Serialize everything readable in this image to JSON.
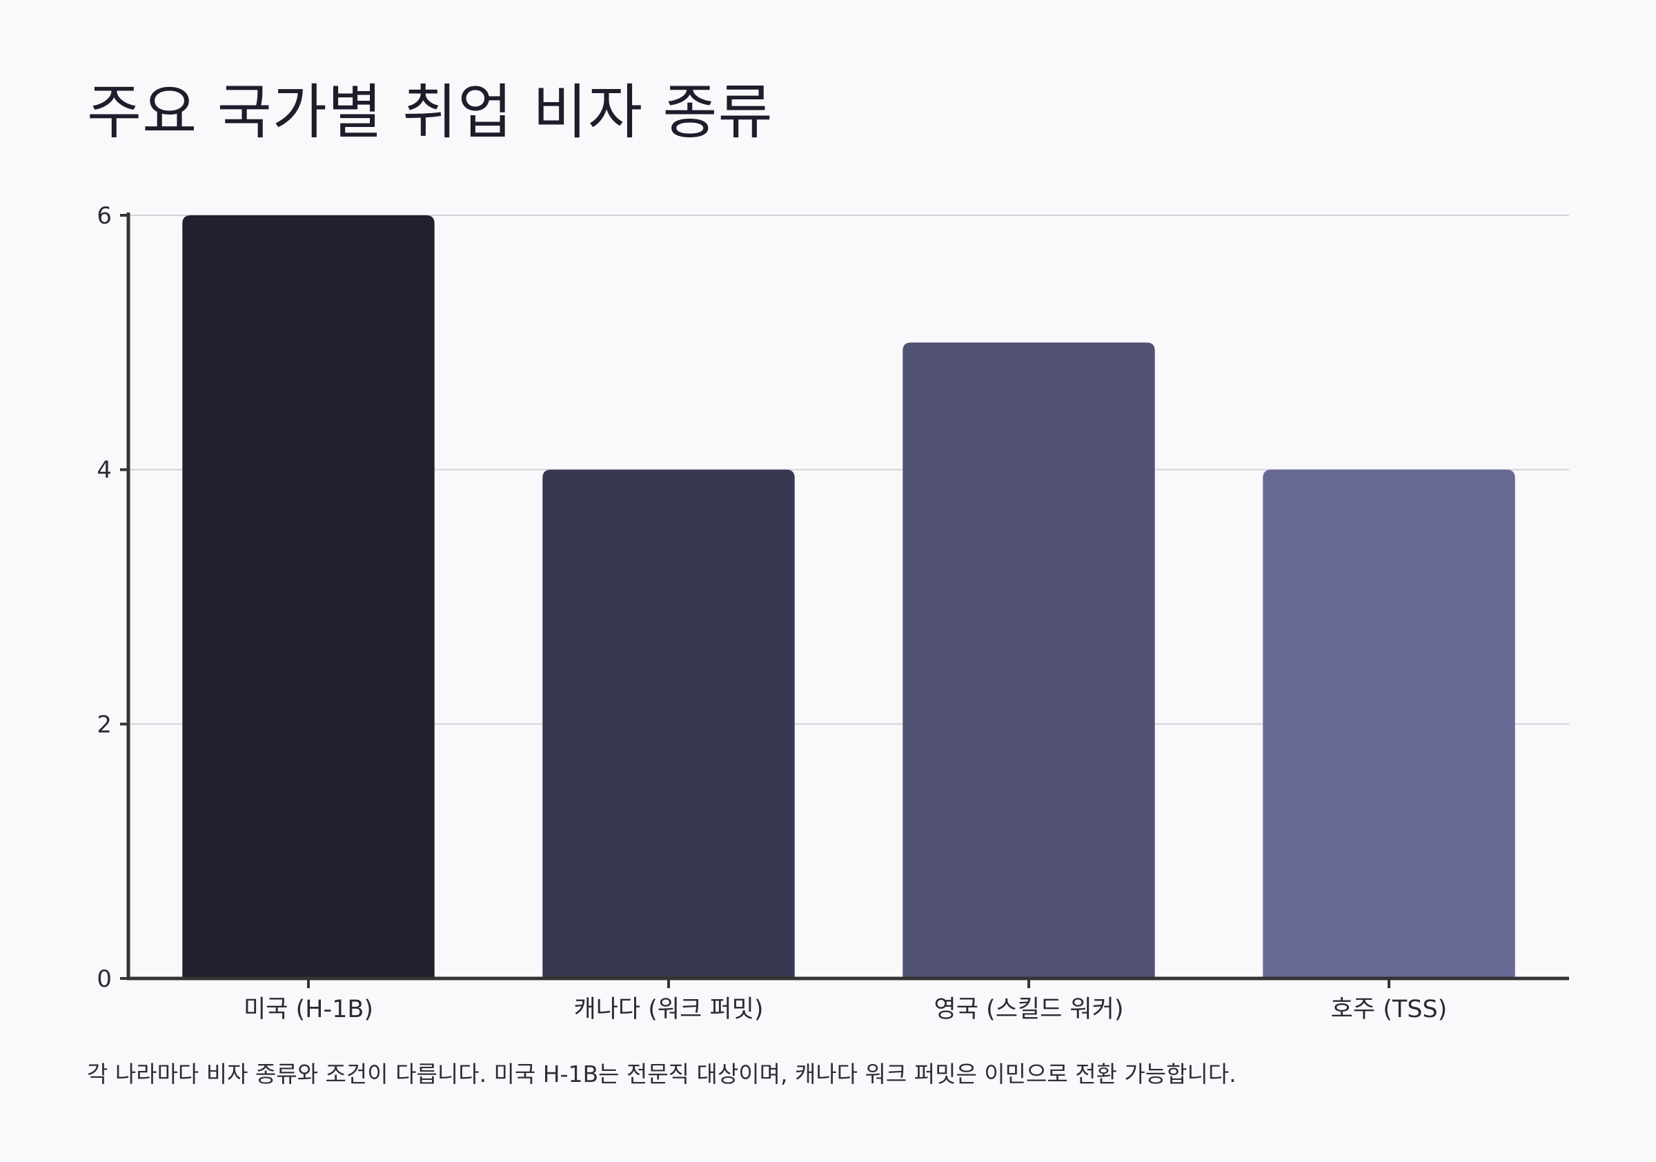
{
  "chart_data": {
    "type": "bar",
    "title": "주요 국가별 취업 비자 종류",
    "categories": [
      "미국 (H-1B)",
      "캐나다 (워크 퍼밋)",
      "영국 (스킬드 워커)",
      "호주 (TSS)"
    ],
    "values": [
      6,
      4,
      5,
      4
    ],
    "bar_colors": [
      "#20202e",
      "#383850",
      "#515173",
      "#696996"
    ],
    "xlabel": "",
    "ylabel": "",
    "ylim": [
      0,
      6
    ],
    "yticks": [
      0,
      2,
      4,
      6
    ],
    "grid": true,
    "legend": "none"
  },
  "caption": "각 나라마다 비자 종류와 조건이 다릅니다. 미국 H-1B는 전문직 대상이며, 캐나다 워크 퍼밋은 이민으로 전환 가능합니다."
}
